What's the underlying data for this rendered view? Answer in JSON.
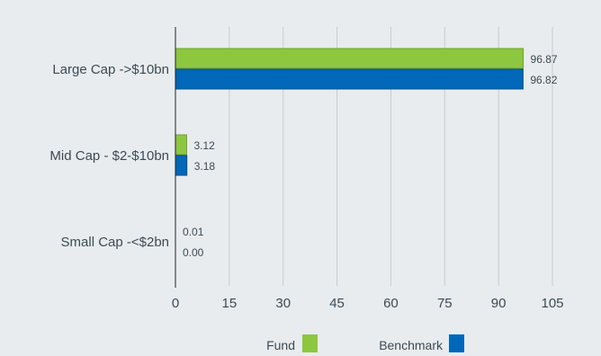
{
  "colors": {
    "fund": "#8dc63f",
    "benchmark": "#0067b9",
    "grid": "#c6ccd1",
    "axis": "#222222"
  },
  "chart_data": {
    "type": "bar",
    "orientation": "horizontal",
    "categories": [
      "Large Cap ->$10bn",
      "Mid Cap - $2-$10bn",
      "Small Cap -<$2bn"
    ],
    "series": [
      {
        "name": "Fund",
        "values": [
          96.87,
          3.12,
          0.01
        ],
        "labels": [
          "96.87",
          "3.12",
          "0.01"
        ]
      },
      {
        "name": "Benchmark",
        "values": [
          96.82,
          3.18,
          0.0
        ],
        "labels": [
          "96.82",
          "3.18",
          "0.00"
        ]
      }
    ],
    "xlim": [
      0,
      105
    ],
    "xticks": [
      0,
      15,
      30,
      45,
      60,
      75,
      90,
      105
    ],
    "grid": true,
    "legend_position": "bottom"
  }
}
